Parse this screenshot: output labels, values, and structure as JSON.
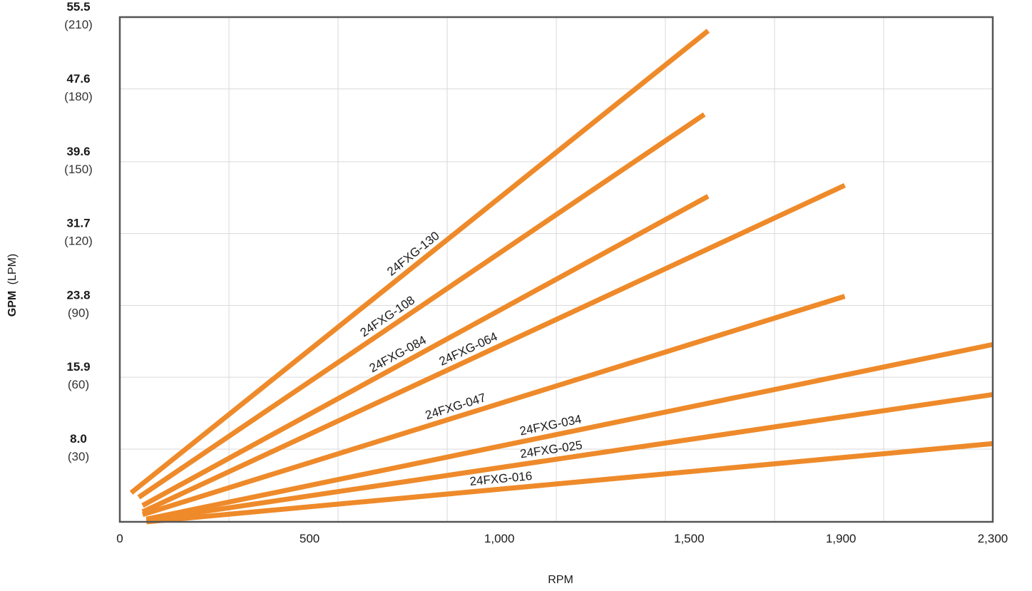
{
  "chart_data": {
    "type": "line",
    "title": "",
    "xlabel": "RPM",
    "ylabel": {
      "primary": "GPM",
      "secondary": "(LPM)"
    },
    "xlim": [
      0,
      2300
    ],
    "ylim": [
      0,
      55.5
    ],
    "x_ticks": [
      {
        "value": 0,
        "label": "0"
      },
      {
        "value": 500,
        "label": "500"
      },
      {
        "value": 1000,
        "label": "1,000"
      },
      {
        "value": 1500,
        "label": "1,500"
      },
      {
        "value": 1900,
        "label": "1,900"
      },
      {
        "value": 2300,
        "label": "2,300"
      }
    ],
    "y_ticks": [
      {
        "value": 8.0,
        "label": "8.0",
        "sub": "(30)"
      },
      {
        "value": 15.9,
        "label": "15.9",
        "sub": "(60)"
      },
      {
        "value": 23.8,
        "label": "23.8",
        "sub": "(90)"
      },
      {
        "value": 31.7,
        "label": "31.7",
        "sub": "(120)"
      },
      {
        "value": 39.6,
        "label": "39.6",
        "sub": "(150)"
      },
      {
        "value": 47.6,
        "label": "47.6",
        "sub": "(180)"
      },
      {
        "value": 55.5,
        "label": "55.5",
        "sub": "(210)"
      }
    ],
    "grid": true,
    "line_color": "#ee8a2a",
    "grid_color": "#d9d9d9",
    "frame_color": "#555555",
    "series": [
      {
        "name": "24FXG-130",
        "x": [
          30,
          1550
        ],
        "y": [
          3.2,
          54.0
        ]
      },
      {
        "name": "24FXG-108",
        "x": [
          50,
          1540
        ],
        "y": [
          2.7,
          44.8
        ]
      },
      {
        "name": "24FXG-084",
        "x": [
          60,
          1550
        ],
        "y": [
          1.8,
          35.8
        ]
      },
      {
        "name": "24FXG-064",
        "x": [
          60,
          1910
        ],
        "y": [
          1.1,
          37.0
        ]
      },
      {
        "name": "24FXG-047",
        "x": [
          60,
          1910
        ],
        "y": [
          0.8,
          24.8
        ]
      },
      {
        "name": "24FXG-034",
        "x": [
          70,
          2300
        ],
        "y": [
          0.3,
          19.5
        ]
      },
      {
        "name": "24FXG-025",
        "x": [
          70,
          2300
        ],
        "y": [
          0.2,
          14.0
        ]
      },
      {
        "name": "24FXG-016",
        "x": [
          70,
          2300
        ],
        "y": [
          0.0,
          8.6
        ]
      }
    ]
  }
}
